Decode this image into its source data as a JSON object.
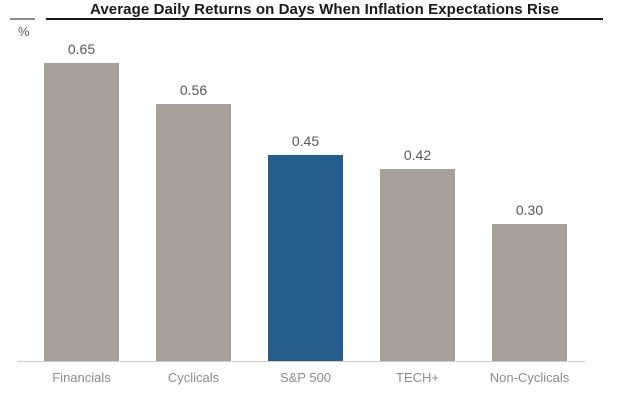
{
  "title": "Average Daily Returns on Days When Inflation Expectations Rise",
  "y_unit_label": "%",
  "colors": {
    "bar_default": "#a8a19a",
    "bar_highlight": "#235e8c",
    "title_text": "#1a1a1a",
    "value_text": "#595959",
    "axis_label_text": "#8c8c8c",
    "baseline": "#cfcdca"
  },
  "chart_data": {
    "type": "bar",
    "categories": [
      "Financials",
      "Cyclicals",
      "S&P 500",
      "TECH+",
      "Non-Cyclicals"
    ],
    "values": [
      0.65,
      0.56,
      0.45,
      0.42,
      0.3
    ],
    "value_labels": [
      "0.65",
      "0.56",
      "0.45",
      "0.42",
      "0.30"
    ],
    "highlight_index": 2,
    "title": "Average Daily Returns on Days When Inflation Expectations Rise",
    "xlabel": "",
    "ylabel": "%",
    "ylim": [
      0,
      0.7
    ],
    "grid": false,
    "legend": false,
    "value_labels_position": "above-bars"
  }
}
